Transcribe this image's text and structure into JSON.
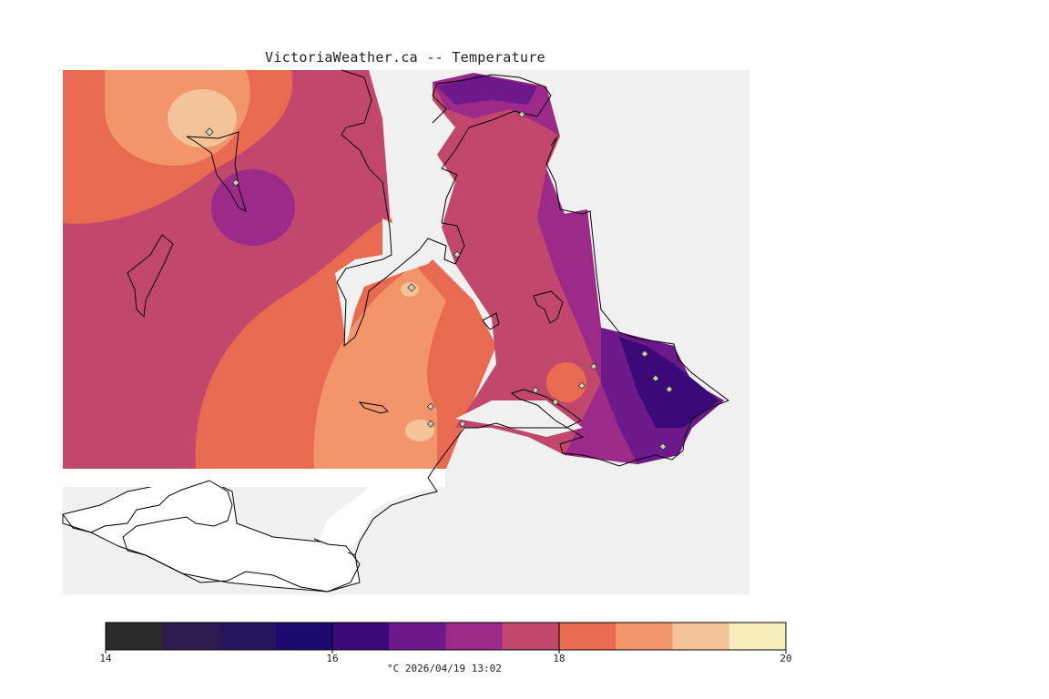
{
  "title": "VictoriaWeather.ca -- Temperature",
  "legend": {
    "ticks": [
      "14",
      "16",
      "18",
      "20"
    ],
    "caption": "°C  2026/04/19 13:02",
    "colors": [
      "#2b2b2b",
      "#2d1b4e",
      "#25145e",
      "#1d0a6e",
      "#3b0a78",
      "#6c1a8a",
      "#9b2a89",
      "#c2476d",
      "#e86a50",
      "#f2956a",
      "#f4c397",
      "#f7edbc"
    ]
  },
  "map": {
    "colors": {
      "land_background": "#c2476d",
      "water": "#f0f0f0",
      "us_land": "#ffffff",
      "coast": "#000000",
      "station_marker": "#d9c7b7"
    }
  }
}
